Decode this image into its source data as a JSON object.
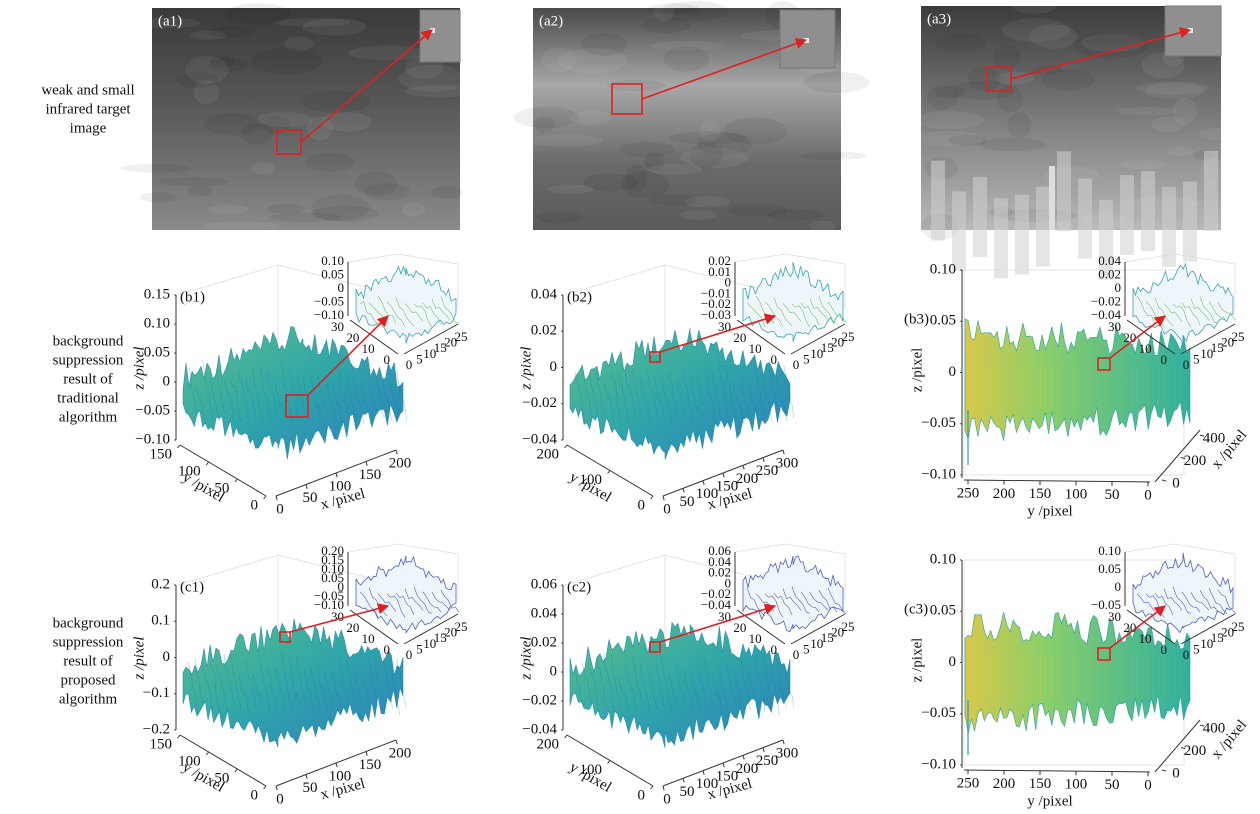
{
  "row_labels": [
    [
      "weak and small",
      "infrared target",
      "image"
    ],
    [
      "background",
      "suppression",
      "result of",
      "traditional",
      "algorithm"
    ],
    [
      "background",
      "suppression",
      "result of",
      "proposed",
      "algorithm"
    ]
  ],
  "images": [
    {
      "label": "(a1)"
    },
    {
      "label": "(a2)"
    },
    {
      "label": "(a3)"
    }
  ],
  "plots": [
    {
      "label": "(b1)",
      "zlabel": "z /pixel",
      "ylabel": "y /pixel",
      "xlabel": "x /pixel",
      "zticks": [
        "0.15",
        "0.10",
        "0.05",
        "0",
        "−0.05",
        "−0.10"
      ],
      "yticks": [
        "150",
        "100",
        "50",
        "0"
      ],
      "xticks": [
        "0",
        "50",
        "100",
        "150",
        "200"
      ],
      "inset": {
        "zticks": [
          "0.10",
          "0.05",
          "0",
          "−0.05",
          "−0.10"
        ],
        "yticks": [
          "30",
          "20",
          "10",
          "0"
        ],
        "xticks": [
          "0",
          "5",
          "10",
          "15",
          "20",
          "25"
        ]
      }
    },
    {
      "label": "(b2)",
      "zlabel": "z /pixel",
      "ylabel": "y /pixel",
      "xlabel": "x /pixel",
      "zticks": [
        "0.04",
        "0.02",
        "0",
        "−0.02",
        "−0.04"
      ],
      "yticks": [
        "200",
        "100",
        "0"
      ],
      "xticks": [
        "0",
        "50",
        "100",
        "150",
        "200",
        "250",
        "300"
      ],
      "inset": {
        "zticks": [
          "0.02",
          "0.01",
          "0",
          "−0.01",
          "−0.02",
          "−0.03"
        ],
        "yticks": [
          "30",
          "20",
          "10",
          "0"
        ],
        "xticks": [
          "0",
          "5",
          "10",
          "15",
          "20",
          "25"
        ]
      }
    },
    {
      "label": "(b3)",
      "zlabel": "z /pixel",
      "ylabel": "y /pixel",
      "xlabel": "x /pixel",
      "zticks": [
        "0.10",
        "0.05",
        "0",
        "−0.05",
        "−0.10"
      ],
      "yticks": [
        "250",
        "200",
        "150",
        "100",
        "50",
        "0"
      ],
      "xticks": [
        "0",
        "200",
        "400"
      ],
      "inset": {
        "zticks": [
          "0.04",
          "0.02",
          "0",
          "−0.02",
          "−0.04"
        ],
        "yticks": [
          "30",
          "20",
          "10",
          "0"
        ],
        "xticks": [
          "0",
          "5",
          "10",
          "15",
          "20",
          "25"
        ]
      }
    },
    {
      "label": "(c1)",
      "zlabel": "z /pixel",
      "ylabel": "y /pixel",
      "xlabel": "x /pixel",
      "zticks": [
        "0.2",
        "0.1",
        "0",
        "−0.1",
        "−0.2"
      ],
      "yticks": [
        "150",
        "100",
        "50",
        "0"
      ],
      "xticks": [
        "0",
        "50",
        "100",
        "150",
        "200"
      ],
      "inset": {
        "zticks": [
          "0.20",
          "0.15",
          "0.10",
          "0.05",
          "0",
          "−0.05",
          "−0.10"
        ],
        "yticks": [
          "30",
          "20",
          "10",
          "0"
        ],
        "xticks": [
          "0",
          "5",
          "10",
          "15",
          "20",
          "25"
        ]
      }
    },
    {
      "label": "(c2)",
      "zlabel": "z /pixel",
      "ylabel": "y /pixel",
      "xlabel": "x /pixel",
      "zticks": [
        "0.06",
        "0.04",
        "0.02",
        "0",
        "−0.02",
        "−0.04"
      ],
      "yticks": [
        "200",
        "100",
        "0"
      ],
      "xticks": [
        "0",
        "50",
        "100",
        "150",
        "200",
        "250",
        "300"
      ],
      "inset": {
        "zticks": [
          "0.06",
          "0.04",
          "0.02",
          "0",
          "−0.02",
          "−0.04"
        ],
        "yticks": [
          "30",
          "20",
          "10",
          "0"
        ],
        "xticks": [
          "0",
          "5",
          "10",
          "15",
          "20",
          "25"
        ]
      }
    },
    {
      "label": "(c3)",
      "zlabel": "z /pixel",
      "ylabel": "y /pixel",
      "xlabel": "x /pixel",
      "zticks": [
        "0.10",
        "0.05",
        "0",
        "−0.05",
        "−0.10"
      ],
      "yticks": [
        "250",
        "200",
        "150",
        "100",
        "50",
        "0"
      ],
      "xticks": [
        "0",
        "200",
        "400"
      ],
      "inset": {
        "zticks": [
          "0.10",
          "0.05",
          "0",
          "−0.05"
        ],
        "yticks": [
          "30",
          "20",
          "10",
          "0"
        ],
        "xticks": [
          "0",
          "5",
          "10",
          "15",
          "20",
          "25"
        ]
      }
    }
  ]
}
